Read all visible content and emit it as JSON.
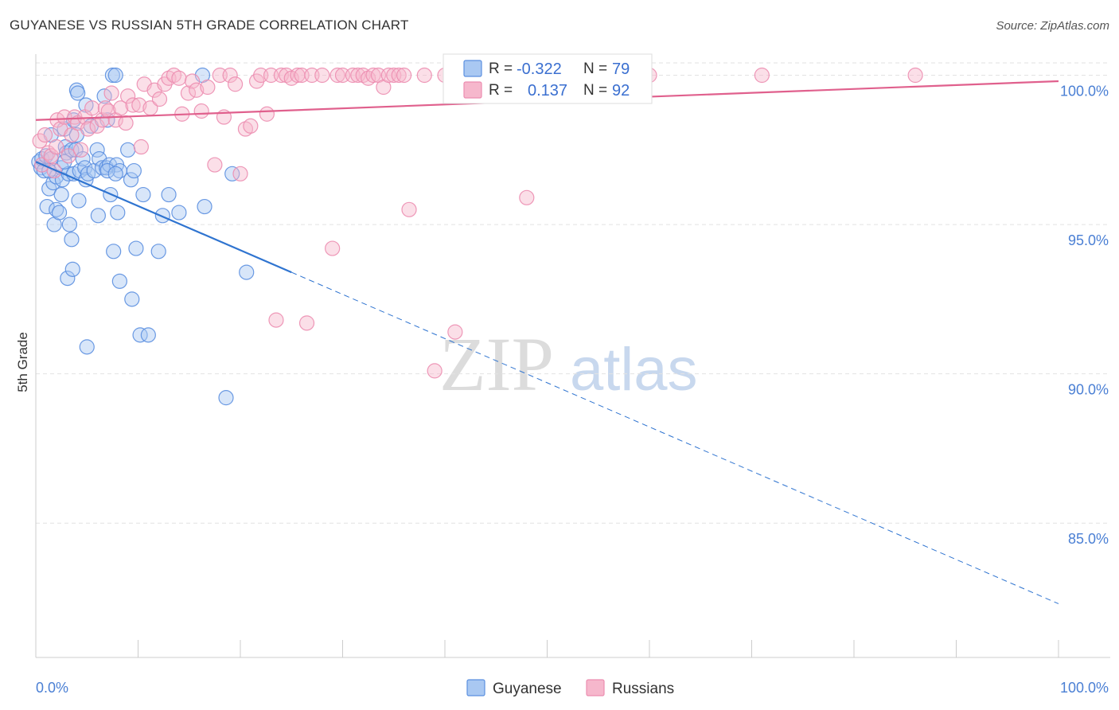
{
  "header": {
    "title": "GUYANESE VS RUSSIAN 5TH GRADE CORRELATION CHART",
    "source": "Source: ZipAtlas.com"
  },
  "watermark": {
    "zip": "ZIP",
    "atlas": "atlas"
  },
  "colors": {
    "guyanese_fill": "#a9c8f2",
    "guyanese_stroke": "#5b8fe0",
    "guyanese_line": "#2f74d0",
    "russians_fill": "#f6b7cc",
    "russians_stroke": "#ec8db0",
    "russians_line": "#e0608d",
    "grid": "#e2e2e2",
    "axis_text": "#4a7fd4"
  },
  "stats": [
    {
      "r_label": "R =",
      "r_value": "-0.322",
      "n_label": "N =",
      "n_value": "79"
    },
    {
      "r_label": "R =",
      "r_value": "0.137",
      "n_label": "N =",
      "n_value": "92"
    }
  ],
  "chart_data": {
    "type": "scatter",
    "title": "GUYANESE VS RUSSIAN 5TH GRADE CORRELATION CHART",
    "xlabel": "",
    "ylabel": "5th Grade",
    "xlim": [
      0,
      100
    ],
    "ylim": [
      80.5,
      100.6
    ],
    "x_tick_labels": [
      "0.0%",
      "100.0%"
    ],
    "y_ticks": [
      85,
      90,
      95,
      100
    ],
    "y_tick_labels": [
      "85.0%",
      "90.0%",
      "95.0%",
      "100.0%"
    ],
    "grid": true,
    "legend_position": "bottom",
    "series": [
      {
        "name": "Guyanese",
        "r": -0.322,
        "n": 79,
        "trend": {
          "x0": 0,
          "y0": 97.1,
          "x1": 100,
          "y1": 82.3,
          "solid_until_x": 25
        },
        "points": [
          [
            0.3,
            97.1
          ],
          [
            0.5,
            96.9
          ],
          [
            0.6,
            97.2
          ],
          [
            0.8,
            96.8
          ],
          [
            1.0,
            97.3
          ],
          [
            1.1,
            95.6
          ],
          [
            1.3,
            96.2
          ],
          [
            1.5,
            98.0
          ],
          [
            1.5,
            97.2
          ],
          [
            1.7,
            96.4
          ],
          [
            1.8,
            95.0
          ],
          [
            2.0,
            96.6
          ],
          [
            2.0,
            95.5
          ],
          [
            2.3,
            95.4
          ],
          [
            2.5,
            96.9
          ],
          [
            2.5,
            96.0
          ],
          [
            2.6,
            96.5
          ],
          [
            2.8,
            98.2
          ],
          [
            2.9,
            97.6
          ],
          [
            3.0,
            97.4
          ],
          [
            3.1,
            93.2
          ],
          [
            3.2,
            96.7
          ],
          [
            3.3,
            95.0
          ],
          [
            3.5,
            97.5
          ],
          [
            3.5,
            94.5
          ],
          [
            3.6,
            93.5
          ],
          [
            3.7,
            96.7
          ],
          [
            3.9,
            97.5
          ],
          [
            4.0,
            98.0
          ],
          [
            3.7,
            98.5
          ],
          [
            4.0,
            99.5
          ],
          [
            4.1,
            99.4
          ],
          [
            4.2,
            95.8
          ],
          [
            4.3,
            96.8
          ],
          [
            4.6,
            97.2
          ],
          [
            4.8,
            96.9
          ],
          [
            4.9,
            96.5
          ],
          [
            4.9,
            99.0
          ],
          [
            5.0,
            90.9
          ],
          [
            5.1,
            96.7
          ],
          [
            5.4,
            98.3
          ],
          [
            5.7,
            96.8
          ],
          [
            6.0,
            97.5
          ],
          [
            6.1,
            95.3
          ],
          [
            6.2,
            97.2
          ],
          [
            6.5,
            96.9
          ],
          [
            6.7,
            99.3
          ],
          [
            6.9,
            96.9
          ],
          [
            7.0,
            98.5
          ],
          [
            7.2,
            97.0
          ],
          [
            7.3,
            96.0
          ],
          [
            7.5,
            100.0
          ],
          [
            7.6,
            94.1
          ],
          [
            7.8,
            100.0
          ],
          [
            7.9,
            97.0
          ],
          [
            8.2,
            96.8
          ],
          [
            8.0,
            95.4
          ],
          [
            8.2,
            93.1
          ],
          [
            7.0,
            96.8
          ],
          [
            7.8,
            96.7
          ],
          [
            9.3,
            96.5
          ],
          [
            9.4,
            92.5
          ],
          [
            9.0,
            97.5
          ],
          [
            9.6,
            96.8
          ],
          [
            9.8,
            94.2
          ],
          [
            10.2,
            91.3
          ],
          [
            10.5,
            96.0
          ],
          [
            11.0,
            91.3
          ],
          [
            12.0,
            94.1
          ],
          [
            12.4,
            95.3
          ],
          [
            13.0,
            96.0
          ],
          [
            14.0,
            95.4
          ],
          [
            16.3,
            100.0
          ],
          [
            16.5,
            95.6
          ],
          [
            18.6,
            89.2
          ],
          [
            19.2,
            96.7
          ],
          [
            20.6,
            93.4
          ],
          [
            1.3,
            96.8
          ],
          [
            2.8,
            97.1
          ]
        ]
      },
      {
        "name": "Russians",
        "r": 0.137,
        "n": 92,
        "trend": {
          "x0": 0,
          "y0": 98.5,
          "x1": 100,
          "y1": 99.8
        },
        "points": [
          [
            0.4,
            97.8
          ],
          [
            0.6,
            97.0
          ],
          [
            0.9,
            98.0
          ],
          [
            1.2,
            97.4
          ],
          [
            1.5,
            97.3
          ],
          [
            1.8,
            96.8
          ],
          [
            2.0,
            97.6
          ],
          [
            2.1,
            98.5
          ],
          [
            2.4,
            98.2
          ],
          [
            2.8,
            98.6
          ],
          [
            3.2,
            97.3
          ],
          [
            3.5,
            98.0
          ],
          [
            3.8,
            98.6
          ],
          [
            4.1,
            98.4
          ],
          [
            4.4,
            97.5
          ],
          [
            4.8,
            98.6
          ],
          [
            5.1,
            98.2
          ],
          [
            5.5,
            98.9
          ],
          [
            6.0,
            98.3
          ],
          [
            6.5,
            98.5
          ],
          [
            6.8,
            98.9
          ],
          [
            7.1,
            98.8
          ],
          [
            7.4,
            99.4
          ],
          [
            7.8,
            98.5
          ],
          [
            8.3,
            98.9
          ],
          [
            8.8,
            98.4
          ],
          [
            9.0,
            99.3
          ],
          [
            9.5,
            99.0
          ],
          [
            10.1,
            99.0
          ],
          [
            10.3,
            97.6
          ],
          [
            10.6,
            99.7
          ],
          [
            11.2,
            98.9
          ],
          [
            11.6,
            99.5
          ],
          [
            12.1,
            99.2
          ],
          [
            12.6,
            99.7
          ],
          [
            13.0,
            99.9
          ],
          [
            13.5,
            100.0
          ],
          [
            14.0,
            99.9
          ],
          [
            14.3,
            98.7
          ],
          [
            14.9,
            99.4
          ],
          [
            15.3,
            99.8
          ],
          [
            15.7,
            99.5
          ],
          [
            16.2,
            98.8
          ],
          [
            16.8,
            99.6
          ],
          [
            17.5,
            97.0
          ],
          [
            18.0,
            100.0
          ],
          [
            18.4,
            98.6
          ],
          [
            19.0,
            100.0
          ],
          [
            19.5,
            99.7
          ],
          [
            20.0,
            96.7
          ],
          [
            20.5,
            98.2
          ],
          [
            21.0,
            98.3
          ],
          [
            21.6,
            99.8
          ],
          [
            22.0,
            100.0
          ],
          [
            22.6,
            98.7
          ],
          [
            23.0,
            100.0
          ],
          [
            23.5,
            91.8
          ],
          [
            24.0,
            100.0
          ],
          [
            24.5,
            100.0
          ],
          [
            25.0,
            99.9
          ],
          [
            25.6,
            100.0
          ],
          [
            26.0,
            100.0
          ],
          [
            26.5,
            91.7
          ],
          [
            27.0,
            100.0
          ],
          [
            28.0,
            100.0
          ],
          [
            29.0,
            94.2
          ],
          [
            29.5,
            100.0
          ],
          [
            30.0,
            100.0
          ],
          [
            31.0,
            100.0
          ],
          [
            31.5,
            100.0
          ],
          [
            32.0,
            100.0
          ],
          [
            32.5,
            99.9
          ],
          [
            33.0,
            100.0
          ],
          [
            33.5,
            100.0
          ],
          [
            34.0,
            99.6
          ],
          [
            34.5,
            100.0
          ],
          [
            35.0,
            100.0
          ],
          [
            35.5,
            100.0
          ],
          [
            36.0,
            100.0
          ],
          [
            36.5,
            95.5
          ],
          [
            38.0,
            100.0
          ],
          [
            40.0,
            100.0
          ],
          [
            42.0,
            100.0
          ],
          [
            39.0,
            90.1
          ],
          [
            41.0,
            91.4
          ],
          [
            44.0,
            100.0
          ],
          [
            46.0,
            100.0
          ],
          [
            48.0,
            95.9
          ],
          [
            53.0,
            100.0
          ],
          [
            60.0,
            100.0
          ],
          [
            71.0,
            100.0
          ],
          [
            86.0,
            100.0
          ]
        ]
      }
    ]
  },
  "legend": {
    "items": [
      "Guyanese",
      "Russians"
    ]
  }
}
